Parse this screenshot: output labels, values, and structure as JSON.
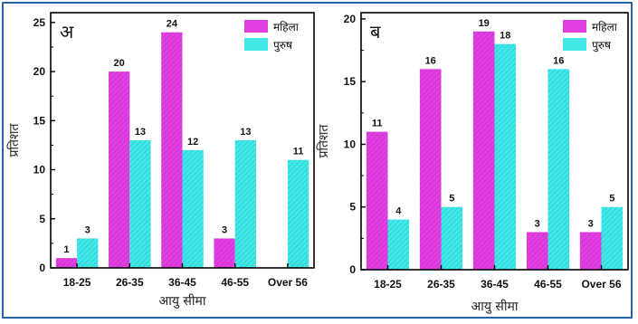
{
  "chart_data": [
    {
      "type": "bar",
      "panel_label": "अ",
      "categories": [
        "18-25",
        "26-35",
        "36-45",
        "46-55",
        "Over 56"
      ],
      "series": [
        {
          "name": "महिला",
          "values": [
            1,
            20,
            24,
            3,
            0
          ],
          "labels": [
            "1",
            "20",
            "24",
            "3",
            ""
          ],
          "color": "#e040e0"
        },
        {
          "name": "पुरुष",
          "values": [
            3,
            13,
            12,
            13,
            11
          ],
          "labels": [
            "3",
            "13",
            "12",
            "13",
            "11"
          ],
          "color": "#40e8e8"
        }
      ],
      "xlabel": "आयु सीमा",
      "ylabel": "प्रतिशत",
      "ylim": [
        0,
        26
      ],
      "yticks": [
        "0",
        "5",
        "10",
        "15",
        "20",
        "25"
      ],
      "legend": "top-right",
      "grid": false
    },
    {
      "type": "bar",
      "panel_label": "ब",
      "categories": [
        "18-25",
        "26-35",
        "36-45",
        "46-55",
        "Over 56"
      ],
      "series": [
        {
          "name": "महिला",
          "values": [
            11,
            16,
            19,
            3,
            3
          ],
          "labels": [
            "11",
            "16",
            "19",
            "3",
            "3"
          ],
          "color": "#e040e0"
        },
        {
          "name": "पुरुष",
          "values": [
            4,
            5,
            18,
            16,
            5
          ],
          "labels": [
            "4",
            "5",
            "18",
            "16",
            "5"
          ],
          "color": "#40e8e8"
        }
      ],
      "xlabel": "आयु सीमा",
      "ylabel": "प्रतिशत",
      "ylim": [
        0,
        20.5
      ],
      "yticks": [
        "0",
        "5",
        "10",
        "15",
        "20"
      ],
      "legend": "top-right",
      "grid": false
    }
  ]
}
